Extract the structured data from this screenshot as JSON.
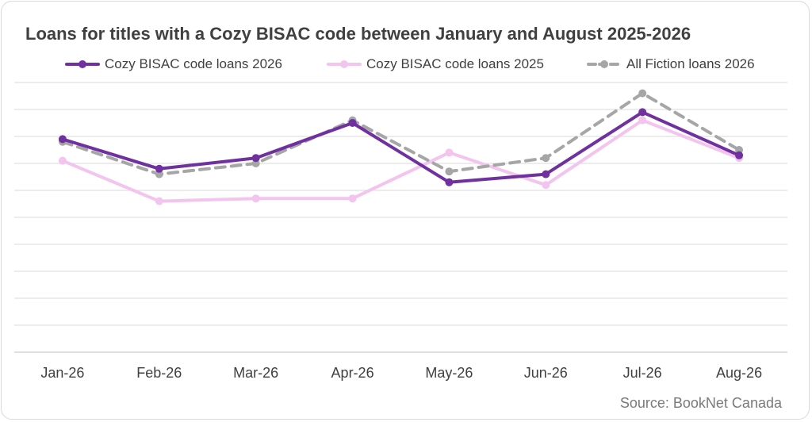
{
  "chart_data": {
    "type": "line",
    "title": "Loans for titles with a Cozy BISAC code between January and August 2025-2026",
    "categories": [
      "Jan-26",
      "Feb-26",
      "Mar-26",
      "Apr-26",
      "May-26",
      "Jun-26",
      "Jul-26",
      "Aug-26"
    ],
    "ylim": [
      0,
      10
    ],
    "y_axis_labels_visible": false,
    "grid": true,
    "legend": "top",
    "series": [
      {
        "name": "Cozy BISAC code loans 2026",
        "color": "#7030a0",
        "dashed": false,
        "values": [
          7.9,
          6.8,
          7.2,
          8.5,
          6.3,
          6.6,
          8.9,
          7.3
        ]
      },
      {
        "name": "Cozy BISAC code loans 2025",
        "color": "#f2c4ee",
        "dashed": false,
        "values": [
          7.1,
          5.6,
          5.7,
          5.7,
          7.4,
          6.2,
          8.6,
          7.2
        ]
      },
      {
        "name": "All Fiction loans 2026",
        "color": "#a6a6a6",
        "dashed": true,
        "values": [
          7.8,
          6.6,
          7.0,
          8.6,
          6.7,
          7.2,
          9.6,
          7.5
        ]
      }
    ],
    "source": "Source: BookNet Canada"
  }
}
